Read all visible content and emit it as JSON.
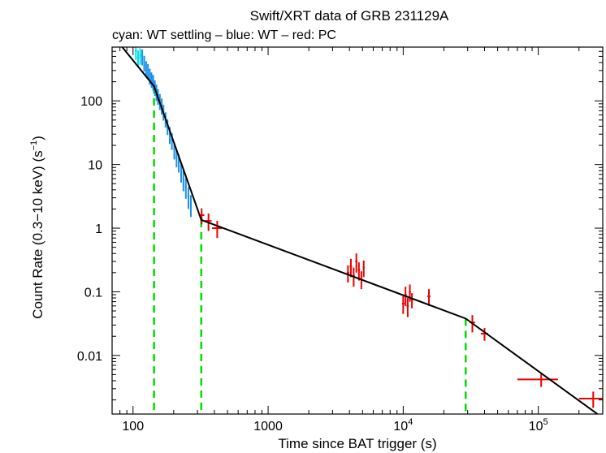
{
  "colors": {
    "wt_settling": "#00e5ee",
    "wt": "#1a8fe8",
    "pc": "#ee0000",
    "model": "#000000",
    "breaks": "#00dd00"
  },
  "chart_data": {
    "type": "scatter",
    "title": "Swift/XRT data of GRB 231129A",
    "subtitle": "cyan: WT settling – blue: WT – red: PC",
    "xlabel": "Time since BAT trigger (s)",
    "ylabel": "Count Rate (0.3−10 keV) (s",
    "ylabel_sup": "−1",
    "ylabel_end": ")",
    "xscale": "log",
    "yscale": "log",
    "xlim": [
      70,
      300000
    ],
    "ylim": [
      0.0012,
      700
    ],
    "x_ticks": [
      {
        "value": 100,
        "base": "100",
        "sup": ""
      },
      {
        "value": 1000,
        "base": "1000",
        "sup": ""
      },
      {
        "value": 10000,
        "base": "10",
        "sup": "4"
      },
      {
        "value": 100000,
        "base": "10",
        "sup": "5"
      }
    ],
    "y_ticks": [
      {
        "value": 100,
        "label": "100"
      },
      {
        "value": 10,
        "label": "10"
      },
      {
        "value": 1,
        "label": "1"
      },
      {
        "value": 0.1,
        "label": "0.1"
      },
      {
        "value": 0.01,
        "label": "0.01"
      }
    ],
    "model_line": [
      {
        "x": 70,
        "y": 1100
      },
      {
        "x": 143,
        "y": 170
      },
      {
        "x": 320,
        "y": 1.35
      },
      {
        "x": 29000,
        "y": 0.038
      },
      {
        "x": 290000,
        "y": 0.0011
      }
    ],
    "breaks": [
      143,
      320,
      29000
    ],
    "series": [
      {
        "name": "WT settling",
        "color": "cyan",
        "points": [
          {
            "x": 105,
            "y": 600,
            "xerr": 2,
            "yerr": 160
          },
          {
            "x": 109,
            "y": 480,
            "xerr": 2,
            "yerr": 140
          },
          {
            "x": 113,
            "y": 520,
            "xerr": 2,
            "yerr": 150
          }
        ]
      },
      {
        "name": "WT",
        "color": "blue",
        "points": [
          {
            "x": 117,
            "y": 500,
            "xerr": 1.5,
            "yerr": 140
          },
          {
            "x": 121,
            "y": 400,
            "xerr": 1.5,
            "yerr": 110
          },
          {
            "x": 125,
            "y": 330,
            "xerr": 1.5,
            "yerr": 90
          },
          {
            "x": 129,
            "y": 300,
            "xerr": 1.5,
            "yerr": 80
          },
          {
            "x": 133,
            "y": 250,
            "xerr": 1.5,
            "yerr": 70
          },
          {
            "x": 137,
            "y": 220,
            "xerr": 1.5,
            "yerr": 60
          },
          {
            "x": 141,
            "y": 200,
            "xerr": 1.5,
            "yerr": 55
          },
          {
            "x": 145,
            "y": 165,
            "xerr": 1.5,
            "yerr": 45
          },
          {
            "x": 149,
            "y": 140,
            "xerr": 1.5,
            "yerr": 40
          },
          {
            "x": 153,
            "y": 120,
            "xerr": 1.5,
            "yerr": 33
          },
          {
            "x": 158,
            "y": 100,
            "xerr": 2,
            "yerr": 28
          },
          {
            "x": 163,
            "y": 85,
            "xerr": 2,
            "yerr": 24
          },
          {
            "x": 168,
            "y": 68,
            "xerr": 2,
            "yerr": 19
          },
          {
            "x": 174,
            "y": 52,
            "xerr": 2,
            "yerr": 14
          },
          {
            "x": 180,
            "y": 40,
            "xerr": 2,
            "yerr": 11
          },
          {
            "x": 187,
            "y": 30,
            "xerr": 2.5,
            "yerr": 9
          },
          {
            "x": 194,
            "y": 24,
            "xerr": 2.5,
            "yerr": 7
          },
          {
            "x": 202,
            "y": 17,
            "xerr": 3,
            "yerr": 5
          },
          {
            "x": 210,
            "y": 13,
            "xerr": 3,
            "yerr": 4
          },
          {
            "x": 218,
            "y": 11,
            "xerr": 3,
            "yerr": 3.5
          },
          {
            "x": 227,
            "y": 8,
            "xerr": 3,
            "yerr": 2.8
          },
          {
            "x": 236,
            "y": 6,
            "xerr": 3,
            "yerr": 2.2
          },
          {
            "x": 246,
            "y": 4.5,
            "xerr": 3.5,
            "yerr": 1.6
          },
          {
            "x": 257,
            "y": 3.2,
            "xerr": 4,
            "yerr": 1.2
          },
          {
            "x": 268,
            "y": 2.4,
            "xerr": 4,
            "yerr": 0.9
          }
        ]
      },
      {
        "name": "PC",
        "color": "red",
        "points": [
          {
            "x": 322,
            "y": 1.6,
            "xerr": 15,
            "yerr": 0.45
          },
          {
            "x": 362,
            "y": 1.3,
            "xerr": 20,
            "yerr": 0.4
          },
          {
            "x": 420,
            "y": 1.0,
            "xerr": 35,
            "yerr": 0.3
          },
          {
            "x": 3900,
            "y": 0.2,
            "xerr": 80,
            "yerr": 0.06
          },
          {
            "x": 4100,
            "y": 0.25,
            "xerr": 80,
            "yerr": 0.08
          },
          {
            "x": 4300,
            "y": 0.18,
            "xerr": 80,
            "yerr": 0.06
          },
          {
            "x": 4500,
            "y": 0.3,
            "xerr": 80,
            "yerr": 0.1
          },
          {
            "x": 4700,
            "y": 0.22,
            "xerr": 80,
            "yerr": 0.07
          },
          {
            "x": 4900,
            "y": 0.16,
            "xerr": 80,
            "yerr": 0.05
          },
          {
            "x": 5100,
            "y": 0.24,
            "xerr": 80,
            "yerr": 0.07
          },
          {
            "x": 10000,
            "y": 0.065,
            "xerr": 200,
            "yerr": 0.02
          },
          {
            "x": 10400,
            "y": 0.09,
            "xerr": 200,
            "yerr": 0.03
          },
          {
            "x": 10800,
            "y": 0.06,
            "xerr": 200,
            "yerr": 0.02
          },
          {
            "x": 11200,
            "y": 0.1,
            "xerr": 200,
            "yerr": 0.03
          },
          {
            "x": 11600,
            "y": 0.075,
            "xerr": 200,
            "yerr": 0.02
          },
          {
            "x": 15500,
            "y": 0.085,
            "xerr": 400,
            "yerr": 0.025
          },
          {
            "x": 32500,
            "y": 0.033,
            "xerr": 1500,
            "yerr": 0.01
          },
          {
            "x": 40000,
            "y": 0.022,
            "xerr": 2500,
            "yerr": 0.005
          },
          {
            "x": 105000,
            "y": 0.0042,
            "xerr": 35000,
            "yerr": 0.001
          },
          {
            "x": 255000,
            "y": 0.0021,
            "xerr": 55000,
            "yerr": 0.0006
          }
        ]
      }
    ]
  }
}
